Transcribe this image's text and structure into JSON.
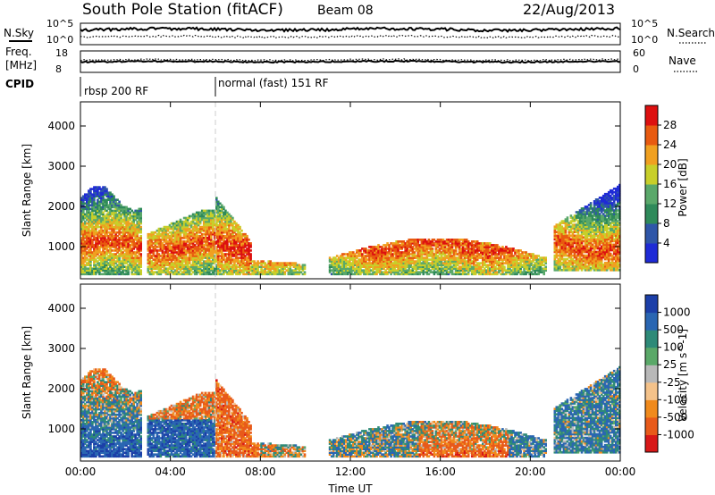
{
  "header": {
    "station": "South Pole Station (fitACF)",
    "beam": "Beam 08",
    "date": "22/Aug/2013"
  },
  "panels": {
    "nsky": {
      "label": "N.Sky",
      "ticks": [
        "10^5",
        "10^0"
      ]
    },
    "nsearch": {
      "label": "N.Search",
      "ticks": [
        "10^5",
        "10^0"
      ]
    },
    "freq": {
      "label_top": "Freq.",
      "label_unit": "[MHz]",
      "ticks": [
        "18",
        "8"
      ]
    },
    "nave": {
      "label": "Nave",
      "ticks": [
        "60",
        "0"
      ]
    },
    "cpid": {
      "label": "CPID",
      "modes": [
        "rbsp 200 RF",
        "normal (fast) 151 RF"
      ]
    }
  },
  "colors": {
    "power": [
      "#1f2bd6",
      "#2f56a8",
      "#2f8a5a",
      "#5aa86a",
      "#c8cf2a",
      "#f0a020",
      "#e85a10",
      "#dd1010"
    ],
    "velocity": [
      "#1c3fa8",
      "#2a66b2",
      "#2e8a78",
      "#5aa868",
      "#b8b8b8",
      "#f4c28a",
      "#f08a1c",
      "#e85a1a",
      "#d81818"
    ]
  },
  "chart_data": [
    {
      "type": "heatmap",
      "title": "Power",
      "ylabel": "Slant Range [km]",
      "xlabel": "",
      "x_ticks": [
        "00:00",
        "04:00",
        "08:00",
        "12:00",
        "16:00",
        "20:00",
        "00:00"
      ],
      "y_ticks": [
        1000,
        2000,
        3000,
        4000
      ],
      "ylim": [
        200,
        4600
      ],
      "colorbar": {
        "label": "Power [dB]",
        "ticks": [
          "28",
          "24",
          "20",
          "16",
          "12",
          "8",
          "4"
        ],
        "range": [
          0,
          30
        ]
      },
      "regions": [
        {
          "t_start": "00:00",
          "t_end": "02:40",
          "range_km": [
            300,
            2600
          ],
          "power_db": "4-24"
        },
        {
          "t_start": "03:00",
          "t_end": "06:00",
          "range_km": [
            300,
            2200
          ],
          "power_db": "4-28"
        },
        {
          "t_start": "06:00",
          "t_end": "07:40",
          "range_km": [
            300,
            2200
          ],
          "power_db": "8-28"
        },
        {
          "t_start": "07:40",
          "t_end": "10:00",
          "range_km": [
            300,
            800
          ],
          "power_db": "4-16"
        },
        {
          "t_start": "11:00",
          "t_end": "20:40",
          "range_km": [
            300,
            1300
          ],
          "power_db": "4-24"
        },
        {
          "t_start": "21:00",
          "t_end": "24:00",
          "range_km": [
            400,
            2600
          ],
          "power_db": "4-24"
        }
      ]
    },
    {
      "type": "heatmap",
      "title": "Velocity",
      "ylabel": "Slant Range [km]",
      "xlabel": "Time UT",
      "x_ticks": [
        "00:00",
        "04:00",
        "08:00",
        "12:00",
        "16:00",
        "20:00",
        "00:00"
      ],
      "y_ticks": [
        1000,
        2000,
        3000,
        4000
      ],
      "ylim": [
        200,
        4600
      ],
      "colorbar": {
        "label": "Velocity [m s^-1]",
        "ticks": [
          "1000",
          "500",
          "100",
          "25",
          "-25",
          "-100",
          "-500",
          "-1000"
        ],
        "range": [
          -1000,
          1000
        ]
      }
    }
  ]
}
